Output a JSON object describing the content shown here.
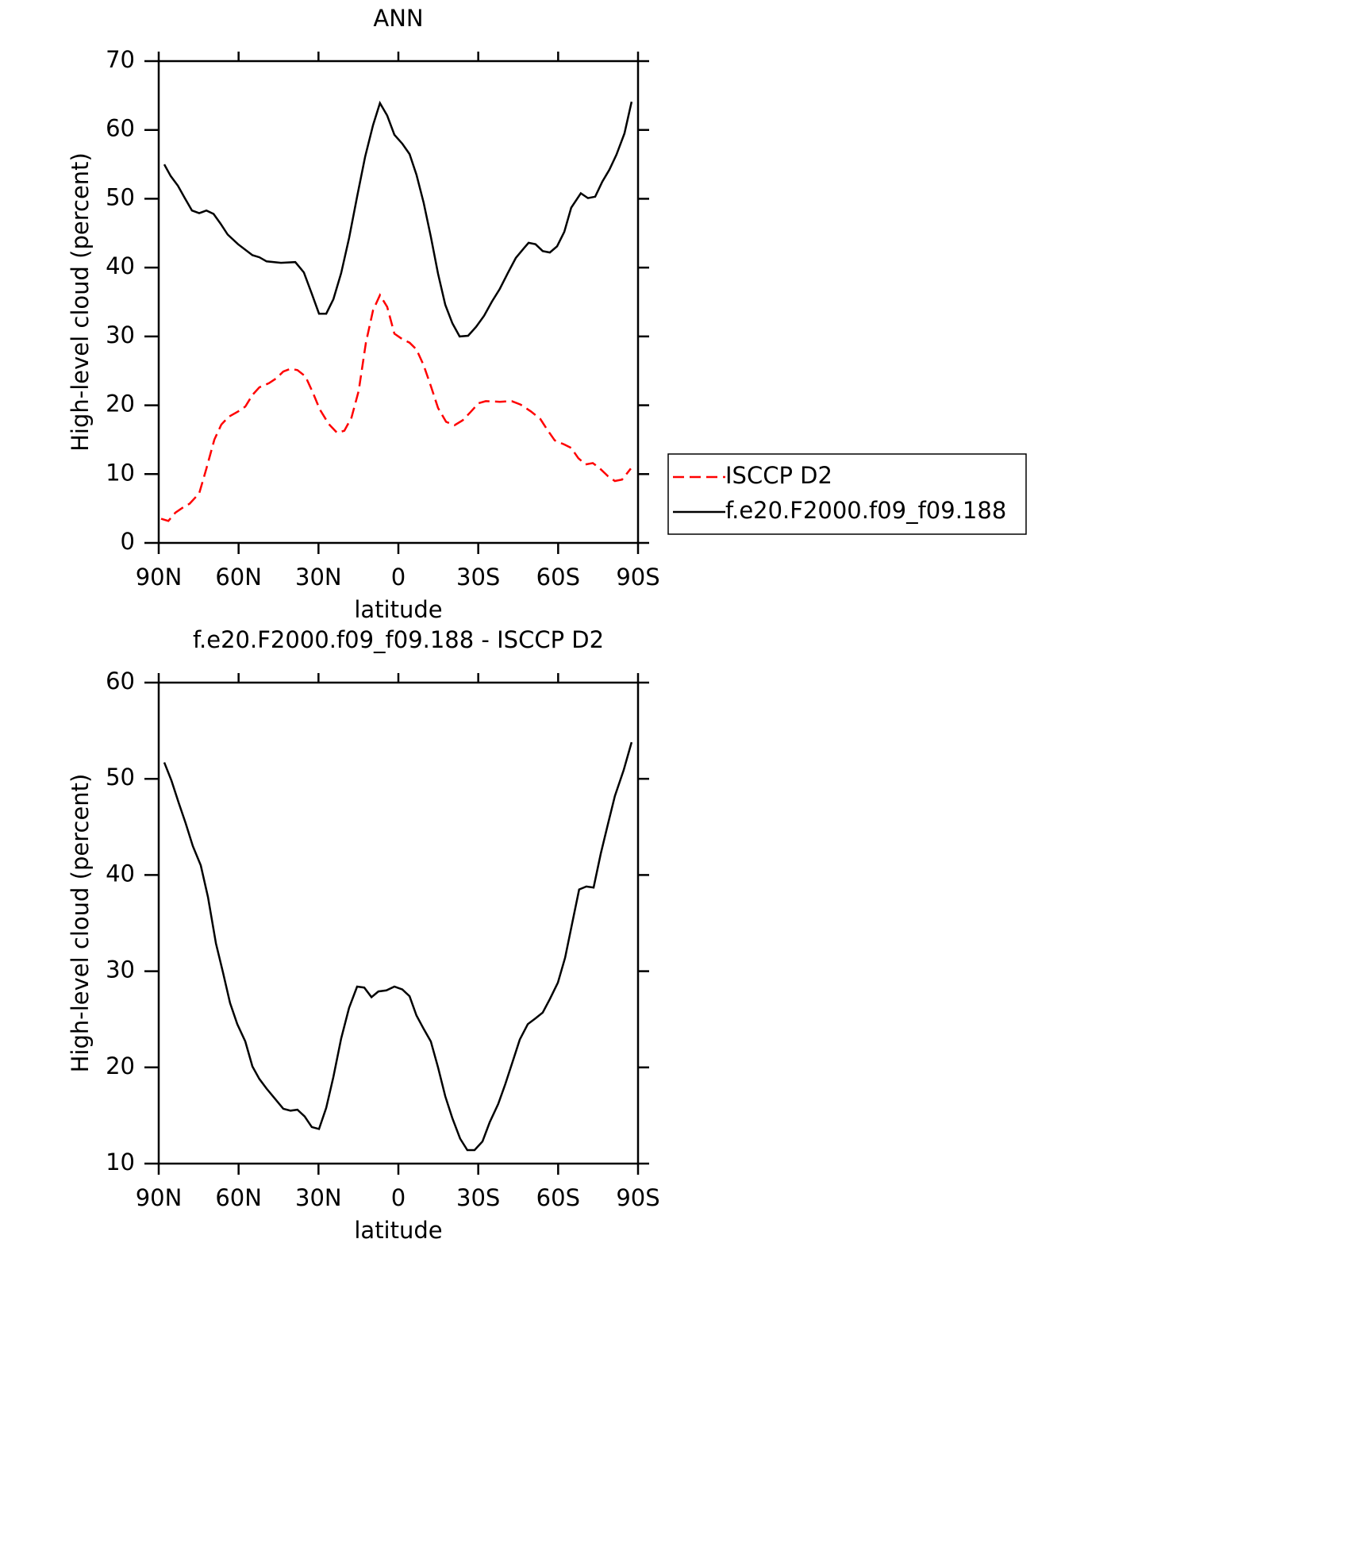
{
  "chart_data": [
    {
      "type": "line",
      "title": "ANN",
      "x_label": "latitude",
      "y_label": "High-level cloud (percent)",
      "xlim": [
        90,
        -90
      ],
      "xticks": [
        {
          "value": 90,
          "label": "90N"
        },
        {
          "value": 60,
          "label": "60N"
        },
        {
          "value": 30,
          "label": "30N"
        },
        0,
        {
          "value": -30,
          "label": "30S"
        },
        {
          "value": -60,
          "label": "60S"
        },
        {
          "value": -90,
          "label": "90S"
        }
      ],
      "ylim": [
        0,
        70
      ],
      "yticks": [
        0,
        10,
        20,
        30,
        40,
        50,
        60,
        70
      ],
      "legend": "outside right",
      "series": [
        {
          "name": "ISCCP D2",
          "color": "#ff0000",
          "dash": "dashed",
          "x": [
            89.1,
            86.4,
            83.7,
            81.1,
            78.4,
            74.8,
            72.1,
            69.1,
            66.5,
            63.8,
            60.2,
            57.5,
            54.8,
            52.2,
            48.6,
            45.9,
            43.2,
            40.5,
            37.9,
            34.9,
            32.2,
            29.5,
            26.2,
            23.0,
            20.3,
            17.6,
            14.9,
            12.2,
            9.5,
            6.9,
            4.2,
            1.5,
            -1.5,
            -4.2,
            -6.8,
            -9.5,
            -12.2,
            -14.9,
            -17.9,
            -21.1,
            -24.1,
            -27.1,
            -30.1,
            -32.8,
            -38.1,
            -42.6,
            -45.9,
            -49.8,
            -53.3,
            -56.0,
            -58.7,
            -62.3,
            -64.9,
            -67.6,
            -70.3,
            -73.0,
            -75.7,
            -78.7,
            -81.3,
            -84.0,
            -87.3
          ],
          "values": [
            3.5,
            3.2,
            4.4,
            5.1,
            5.7,
            7.2,
            10.8,
            15.0,
            17.2,
            18.3,
            19.1,
            19.8,
            21.5,
            22.6,
            23.2,
            23.9,
            24.9,
            25.3,
            25.1,
            24.2,
            21.9,
            19.4,
            17.3,
            16.0,
            16.3,
            18.2,
            22.1,
            29.1,
            33.8,
            36.0,
            34.3,
            30.4,
            29.6,
            29.1,
            28.1,
            25.8,
            22.8,
            19.6,
            17.6,
            17.1,
            17.8,
            19.0,
            20.3,
            20.6,
            20.5,
            20.6,
            20.1,
            19.1,
            18.0,
            16.4,
            14.9,
            14.3,
            13.8,
            12.3,
            11.4,
            11.6,
            10.8,
            9.7,
            9.0,
            9.2,
            10.8
          ]
        },
        {
          "name": "f.e20.F2000.f09_f09.188",
          "color": "#000000",
          "dash": "solid",
          "x": [
            87.9,
            85.5,
            82.8,
            80.2,
            77.5,
            74.8,
            72.1,
            69.4,
            66.8,
            64.1,
            60.2,
            54.8,
            52.2,
            49.5,
            44.1,
            38.7,
            35.5,
            32.5,
            29.8,
            27.1,
            24.4,
            21.5,
            18.5,
            15.5,
            12.5,
            9.5,
            6.9,
            4.2,
            1.5,
            -1.5,
            -4.2,
            -6.8,
            -9.5,
            -12.2,
            -14.9,
            -17.6,
            -20.3,
            -23.0,
            -26.2,
            -29.2,
            -32.2,
            -35.2,
            -38.1,
            -41.1,
            -44.1,
            -47.1,
            -48.9,
            -51.5,
            -54.2,
            -56.9,
            -59.6,
            -62.3,
            -64.9,
            -68.5,
            -71.2,
            -73.9,
            -76.6,
            -79.2,
            -81.9,
            -84.9,
            -87.6
          ],
          "values": [
            55.0,
            53.3,
            51.9,
            50.1,
            48.3,
            47.9,
            48.3,
            47.8,
            46.4,
            44.8,
            43.4,
            41.8,
            41.5,
            40.9,
            40.7,
            40.8,
            39.3,
            36.2,
            33.3,
            33.3,
            35.4,
            39.2,
            44.3,
            50.3,
            56.1,
            60.7,
            63.9,
            62.1,
            59.3,
            58.0,
            56.5,
            53.5,
            49.4,
            44.5,
            39.1,
            34.6,
            31.9,
            30.0,
            30.1,
            31.4,
            33.0,
            35.1,
            36.9,
            39.2,
            41.4,
            42.8,
            43.6,
            43.4,
            42.4,
            42.2,
            43.1,
            45.2,
            48.7,
            50.8,
            50.1,
            50.3,
            52.5,
            54.2,
            56.4,
            59.5,
            64.1
          ]
        }
      ]
    },
    {
      "type": "line",
      "title": "f.e20.F2000.f09_f09.188 - ISCCP D2",
      "x_label": "latitude",
      "y_label": "High-level cloud (percent)",
      "xlim": [
        90,
        -90
      ],
      "xticks": [
        {
          "value": 90,
          "label": "90N"
        },
        {
          "value": 60,
          "label": "60N"
        },
        {
          "value": 30,
          "label": "30N"
        },
        0,
        {
          "value": -30,
          "label": "30S"
        },
        {
          "value": -60,
          "label": "60S"
        },
        {
          "value": -90,
          "label": "90S"
        }
      ],
      "ylim": [
        10,
        60
      ],
      "yticks": [
        10,
        20,
        30,
        40,
        50,
        60
      ],
      "series": [
        {
          "color": "#000000",
          "dash": "solid",
          "x": [
            87.9,
            85.2,
            82.5,
            79.9,
            77.2,
            74.2,
            71.5,
            68.5,
            65.9,
            63.2,
            60.5,
            57.5,
            54.8,
            52.2,
            49.5,
            46.8,
            43.2,
            40.5,
            37.9,
            35.2,
            32.5,
            29.8,
            27.1,
            24.4,
            21.5,
            18.5,
            15.5,
            12.8,
            10.1,
            7.5,
            4.5,
            1.5,
            -1.5,
            -4.2,
            -6.8,
            -9.5,
            -12.2,
            -14.9,
            -17.6,
            -20.3,
            -23.2,
            -25.9,
            -28.6,
            -31.6,
            -34.3,
            -37.5,
            -40.2,
            -42.9,
            -45.6,
            -48.6,
            -51.5,
            -54.2,
            -56.9,
            -59.9,
            -62.6,
            -65.2,
            -67.9,
            -70.6,
            -73.3,
            -76.0,
            -78.7,
            -81.3,
            -84.6,
            -87.6
          ],
          "values": [
            51.7,
            49.8,
            47.5,
            45.4,
            43.0,
            41.0,
            37.7,
            32.9,
            29.9,
            26.7,
            24.5,
            22.7,
            20.1,
            18.8,
            17.8,
            16.9,
            15.7,
            15.5,
            15.6,
            14.9,
            13.8,
            13.6,
            15.8,
            19.0,
            23.0,
            26.2,
            28.4,
            28.3,
            27.3,
            27.9,
            28.0,
            28.4,
            28.1,
            27.4,
            25.4,
            24.0,
            22.7,
            20.0,
            17.0,
            14.7,
            12.6,
            11.4,
            11.4,
            12.3,
            14.3,
            16.2,
            18.3,
            20.6,
            22.9,
            24.5,
            25.1,
            25.7,
            27.1,
            28.8,
            31.4,
            34.9,
            38.5,
            38.8,
            38.7,
            42.2,
            45.3,
            48.2,
            50.9,
            53.8
          ]
        }
      ]
    }
  ]
}
